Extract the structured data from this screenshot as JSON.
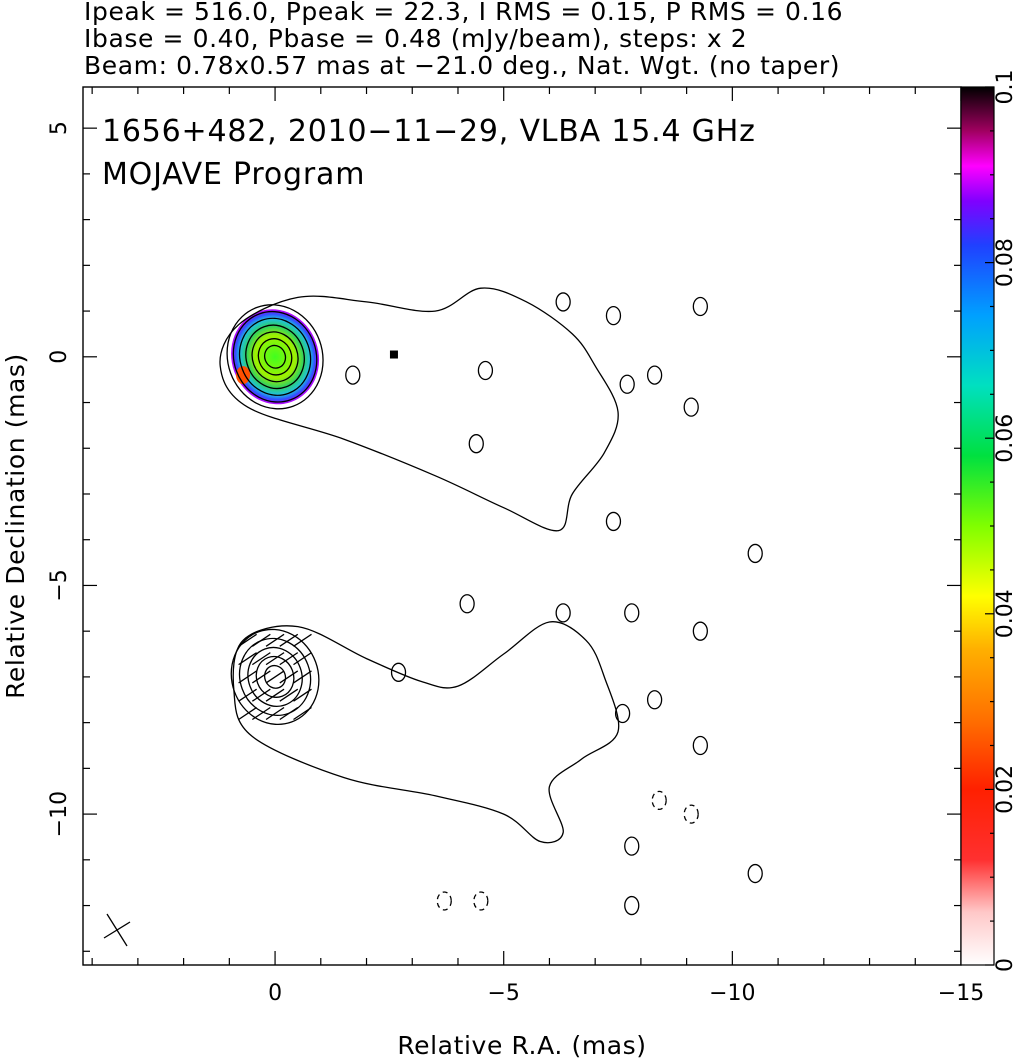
{
  "header": {
    "line1": "Ipeak = 516.0, Ppeak = 22.3, I RMS = 0.15, P RMS = 0.16",
    "line2": "Ibase = 0.40, Pbase = 0.48 (mJy/beam), steps: x 2",
    "line3": "Beam: 0.78x0.57 mas at −21.0 deg., Nat. Wgt. (no taper)"
  },
  "chart_data": {
    "type": "contour",
    "title_line1": "1656+482, 2010−11−29, VLBA 15.4 GHz",
    "title_line2": "MOJAVE Program",
    "xlabel": "Relative R.A. (mas)",
    "ylabel": "Relative Declination (mas)",
    "xlim": [
      4.2,
      -15.0
    ],
    "ylim": [
      -13.3,
      5.9
    ],
    "x_ticks": [
      0,
      -5,
      -10,
      -15
    ],
    "x_tick_labels": [
      "0",
      "−5",
      "−10",
      "−15"
    ],
    "y_ticks": [
      5,
      0,
      -5,
      -10
    ],
    "y_tick_labels": [
      "5",
      "0",
      "−5",
      "−10"
    ],
    "colorbar": {
      "range": [
        0,
        0.1
      ],
      "ticks": [
        0,
        0.02,
        0.04,
        0.06,
        0.08,
        0.1
      ],
      "tick_labels": [
        "0",
        "0.02",
        "0.04",
        "0.06",
        "0.08",
        "0.1"
      ]
    },
    "beam": {
      "major_mas": 0.78,
      "minor_mas": 0.57,
      "pa_deg": -21.0
    },
    "upper_panel": {
      "core": [
        0,
        0
      ],
      "core_contour_radii_mas": [
        0.25,
        0.4,
        0.55,
        0.7,
        0.85,
        1.0,
        1.15
      ],
      "jet_outline": [
        [
          0.6,
          -1.1
        ],
        [
          -1.5,
          -1.8
        ],
        [
          -3.5,
          -2.6
        ],
        [
          -5.0,
          -3.3
        ],
        [
          -6.2,
          -3.8
        ],
        [
          -6.5,
          -3.0
        ],
        [
          -7.2,
          -2.1
        ],
        [
          -7.5,
          -1.2
        ],
        [
          -7.0,
          -0.2
        ],
        [
          -6.5,
          0.5
        ],
        [
          -5.5,
          1.2
        ],
        [
          -4.5,
          1.5
        ],
        [
          -3.5,
          1.0
        ],
        [
          -2.0,
          1.2
        ],
        [
          -0.5,
          1.3
        ],
        [
          0.8,
          0.7
        ],
        [
          1.2,
          -0.2
        ]
      ],
      "blobs": [
        [
          -1.7,
          -0.4
        ],
        [
          -4.6,
          -0.3
        ],
        [
          -4.4,
          -1.9
        ],
        [
          -6.3,
          1.2
        ],
        [
          -7.4,
          0.9
        ],
        [
          -7.7,
          -0.6
        ],
        [
          -8.3,
          -0.4
        ],
        [
          -9.1,
          -1.1
        ],
        [
          -9.3,
          1.1
        ],
        [
          -7.4,
          -3.6
        ],
        [
          -10.5,
          -4.3
        ],
        [
          -4.2,
          -5.4
        ],
        [
          -7.8,
          -5.6
        ]
      ],
      "marker": [
        -2.6,
        0.05
      ],
      "color_blob": {
        "center": [
          0,
          0
        ],
        "peak_value": 0.05
      }
    },
    "lower_panel": {
      "core": [
        0,
        -7.0
      ],
      "core_contour_radii_mas": [
        0.25,
        0.45,
        0.65,
        0.85,
        1.05
      ],
      "jet_outline": [
        [
          0.9,
          -7.3
        ],
        [
          0.5,
          -8.3
        ],
        [
          -1.5,
          -9.2
        ],
        [
          -3.5,
          -9.6
        ],
        [
          -5.0,
          -10.0
        ],
        [
          -5.8,
          -10.6
        ],
        [
          -6.3,
          -10.4
        ],
        [
          -6.0,
          -9.4
        ],
        [
          -6.7,
          -8.8
        ],
        [
          -7.5,
          -8.2
        ],
        [
          -7.2,
          -7.0
        ],
        [
          -6.8,
          -6.2
        ],
        [
          -6.0,
          -5.8
        ],
        [
          -5.0,
          -6.5
        ],
        [
          -4.0,
          -7.2
        ],
        [
          -3.2,
          -7.1
        ],
        [
          -2.0,
          -6.6
        ],
        [
          -0.5,
          -5.9
        ],
        [
          0.7,
          -6.2
        ]
      ],
      "blobs": [
        [
          -6.3,
          -5.6
        ],
        [
          -7.6,
          -7.8
        ],
        [
          -8.3,
          -7.5
        ],
        [
          -9.3,
          -6.0
        ],
        [
          -9.3,
          -8.5
        ],
        [
          -7.8,
          -10.7
        ],
        [
          -10.5,
          -11.3
        ],
        [
          -7.8,
          -12.0
        ],
        [
          -2.7,
          -6.9
        ]
      ],
      "negative_blobs": [
        [
          -8.4,
          -9.7
        ],
        [
          -9.1,
          -10.0
        ],
        [
          -3.7,
          -11.9
        ],
        [
          -4.5,
          -11.9
        ]
      ]
    }
  }
}
